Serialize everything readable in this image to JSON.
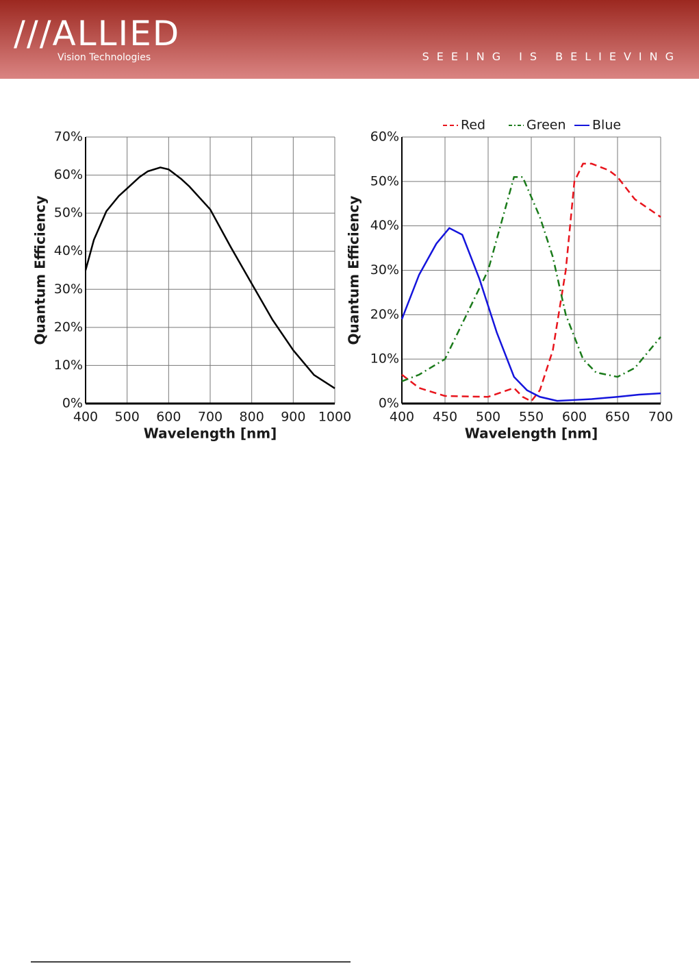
{
  "header": {
    "logo": "///ALLIED",
    "logo_sub": "Vision Technologies",
    "tagline": "SEEING IS BELIEVING"
  },
  "chart_data": [
    {
      "type": "line",
      "x_label": "Wavelength [nm]",
      "y_label": "Quantum Efficiency",
      "grid": true,
      "xlim": [
        400,
        1000
      ],
      "xticks": [
        400,
        500,
        600,
        700,
        800,
        900,
        1000
      ],
      "ylim": [
        0,
        70
      ],
      "yticks": [
        {
          "value": 0,
          "label": "0%"
        },
        {
          "value": 10,
          "label": "10%"
        },
        {
          "value": 20,
          "label": "20%"
        },
        {
          "value": 30,
          "label": "30%"
        },
        {
          "value": 40,
          "label": "40%"
        },
        {
          "value": 50,
          "label": "50%"
        },
        {
          "value": 60,
          "label": "60%"
        },
        {
          "value": 70,
          "label": "70%"
        }
      ],
      "color": "#000000",
      "x": [
        400,
        420,
        450,
        480,
        500,
        530,
        550,
        580,
        600,
        630,
        650,
        700,
        750,
        800,
        850,
        900,
        950,
        1000
      ],
      "values": [
        35,
        43,
        50.5,
        54.5,
        56.5,
        59.5,
        61,
        62,
        61.5,
        59,
        57,
        51,
        41,
        31.5,
        22,
        14,
        7.5,
        4
      ]
    },
    {
      "type": "line",
      "x_label": "Wavelength [nm]",
      "y_label": "Quantum Efficiency",
      "grid": true,
      "legend": "top",
      "xlim": [
        400,
        700
      ],
      "xticks": [
        400,
        450,
        500,
        550,
        600,
        650,
        700
      ],
      "ylim": [
        0,
        60
      ],
      "yticks": [
        {
          "value": 0,
          "label": "0%"
        },
        {
          "value": 10,
          "label": "10%"
        },
        {
          "value": 20,
          "label": "20%"
        },
        {
          "value": 30,
          "label": "30%"
        },
        {
          "value": 40,
          "label": "40%"
        },
        {
          "value": 50,
          "label": "50%"
        },
        {
          "value": 60,
          "label": "60%"
        }
      ],
      "series": [
        {
          "name": "Red",
          "color": "#e8141c",
          "line_style": "dashed",
          "x": [
            400,
            420,
            450,
            475,
            500,
            530,
            540,
            550,
            560,
            575,
            590,
            600,
            610,
            620,
            640,
            650,
            670,
            700
          ],
          "values": [
            6.5,
            3.5,
            1.7,
            1.6,
            1.5,
            3.5,
            1.5,
            0.5,
            3,
            12,
            30,
            50,
            54,
            54,
            52.5,
            51,
            46,
            42
          ]
        },
        {
          "name": "Green",
          "color": "#1a7a1a",
          "line_style": "dashdot",
          "x": [
            400,
            420,
            450,
            475,
            500,
            520,
            530,
            540,
            560,
            575,
            590,
            610,
            625,
            650,
            670,
            700
          ],
          "values": [
            5,
            6.5,
            10,
            20,
            30,
            44,
            51,
            51,
            42,
            33,
            20,
            10,
            7,
            6,
            8,
            15
          ]
        },
        {
          "name": "Blue",
          "color": "#1414dc",
          "line_style": "solid",
          "x": [
            400,
            420,
            440,
            455,
            470,
            490,
            510,
            530,
            545,
            560,
            580,
            600,
            620,
            650,
            675,
            700
          ],
          "values": [
            19,
            29,
            36,
            39.5,
            38,
            28,
            16,
            6,
            3,
            1.5,
            0.6,
            0.8,
            1,
            1.5,
            2,
            2.3
          ]
        }
      ]
    }
  ]
}
